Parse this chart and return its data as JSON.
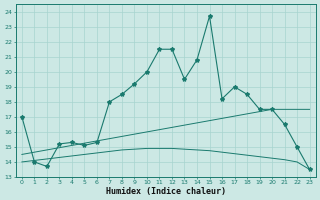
{
  "xlabel": "Humidex (Indice chaleur)",
  "x_values": [
    0,
    1,
    2,
    3,
    4,
    5,
    6,
    7,
    8,
    9,
    10,
    11,
    12,
    13,
    14,
    15,
    16,
    17,
    18,
    19,
    20,
    21,
    22,
    23
  ],
  "x_labels": [
    "0",
    "1",
    "2",
    "3",
    "4",
    "5",
    "6",
    "7",
    "8",
    "9",
    "10",
    "11",
    "12",
    "13",
    "14",
    "15",
    "16",
    "17",
    "18",
    "19",
    "20",
    "21",
    "22",
    "23"
  ],
  "ylim": [
    13,
    24.5
  ],
  "yticks": [
    13,
    14,
    15,
    16,
    17,
    18,
    19,
    20,
    21,
    22,
    23,
    24
  ],
  "line1_y": [
    17.0,
    14.0,
    13.7,
    15.2,
    15.3,
    15.1,
    15.3,
    18.0,
    18.5,
    19.2,
    20.0,
    21.5,
    21.5,
    19.5,
    20.8,
    23.7,
    18.2,
    19.0,
    18.5,
    17.5,
    17.5,
    16.5,
    15.0,
    13.5
  ],
  "trend1_y": [
    14.5,
    14.65,
    14.8,
    14.95,
    15.1,
    15.25,
    15.4,
    15.55,
    15.7,
    15.85,
    16.0,
    16.15,
    16.3,
    16.45,
    16.6,
    16.75,
    16.9,
    17.05,
    17.2,
    17.35,
    17.5,
    17.5,
    17.5,
    17.5
  ],
  "trend2_y": [
    14.0,
    14.1,
    14.2,
    14.3,
    14.4,
    14.5,
    14.6,
    14.7,
    14.8,
    14.85,
    14.9,
    14.9,
    14.9,
    14.85,
    14.8,
    14.75,
    14.65,
    14.55,
    14.45,
    14.35,
    14.25,
    14.15,
    14.0,
    13.5
  ],
  "line_color": "#1a7a6e",
  "bg_color": "#cce8e4",
  "grid_color": "#a8d4cf"
}
